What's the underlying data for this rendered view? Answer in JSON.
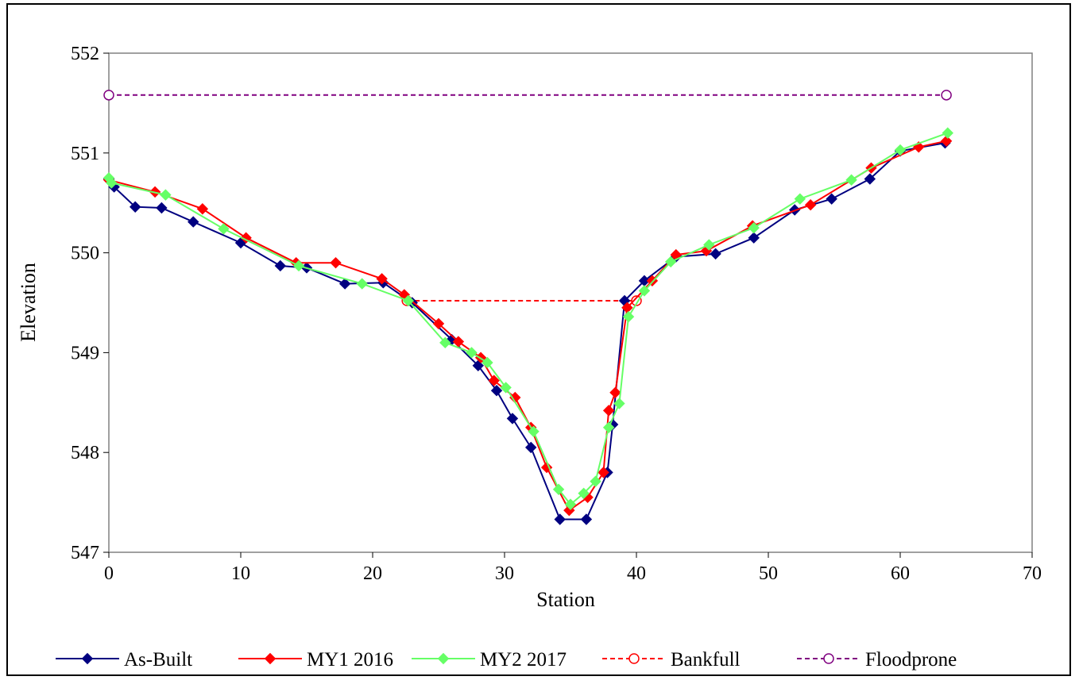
{
  "chart_data": {
    "type": "line",
    "title": "",
    "xlabel": "Station",
    "ylabel": "Elevation",
    "xlim": [
      0,
      70
    ],
    "ylim": [
      547,
      552
    ],
    "xticks": [
      0,
      10,
      20,
      30,
      40,
      50,
      60,
      70
    ],
    "yticks": [
      547,
      548,
      549,
      550,
      551,
      552
    ],
    "grid": false,
    "legend_position": "bottom",
    "series": [
      {
        "name": "As-Built",
        "color": "#000080",
        "line_style": "solid",
        "marker": "diamond",
        "points": [
          [
            0,
            550.74
          ],
          [
            0.4,
            550.66
          ],
          [
            2.0,
            550.46
          ],
          [
            4.0,
            550.45
          ],
          [
            6.4,
            550.31
          ],
          [
            10.0,
            550.1
          ],
          [
            13.0,
            549.87
          ],
          [
            15.0,
            549.85
          ],
          [
            17.9,
            549.69
          ],
          [
            20.8,
            549.7
          ],
          [
            23.0,
            549.5
          ],
          [
            26.0,
            549.13
          ],
          [
            28.0,
            548.87
          ],
          [
            29.4,
            548.62
          ],
          [
            30.6,
            548.34
          ],
          [
            32.0,
            548.05
          ],
          [
            34.2,
            547.33
          ],
          [
            36.2,
            547.33
          ],
          [
            37.8,
            547.8
          ],
          [
            38.2,
            548.28
          ],
          [
            39.1,
            549.52
          ],
          [
            40.6,
            549.72
          ],
          [
            43.0,
            549.96
          ],
          [
            46.0,
            549.99
          ],
          [
            48.9,
            550.15
          ],
          [
            52.0,
            550.43
          ],
          [
            54.8,
            550.54
          ],
          [
            57.7,
            550.74
          ],
          [
            60.0,
            551.02
          ],
          [
            63.4,
            551.1
          ]
        ]
      },
      {
        "name": "MY1 2016",
        "color": "#ff0000",
        "line_style": "solid",
        "marker": "diamond",
        "points": [
          [
            0,
            550.73
          ],
          [
            3.5,
            550.61
          ],
          [
            7.1,
            550.44
          ],
          [
            10.4,
            550.15
          ],
          [
            14.2,
            549.9
          ],
          [
            17.2,
            549.9
          ],
          [
            20.7,
            549.74
          ],
          [
            22.4,
            549.58
          ],
          [
            25.0,
            549.29
          ],
          [
            26.5,
            549.11
          ],
          [
            28.2,
            548.95
          ],
          [
            29.2,
            548.72
          ],
          [
            30.8,
            548.55
          ],
          [
            32.0,
            548.25
          ],
          [
            33.2,
            547.85
          ],
          [
            34.9,
            547.42
          ],
          [
            36.3,
            547.55
          ],
          [
            37.5,
            547.8
          ],
          [
            37.9,
            548.42
          ],
          [
            38.4,
            548.6
          ],
          [
            39.3,
            549.45
          ],
          [
            41.2,
            549.72
          ],
          [
            43.0,
            549.98
          ],
          [
            45.3,
            550.02
          ],
          [
            48.8,
            550.27
          ],
          [
            53.2,
            550.48
          ],
          [
            57.8,
            550.85
          ],
          [
            61.4,
            551.06
          ],
          [
            63.5,
            551.12
          ]
        ]
      },
      {
        "name": "MY2 2017",
        "color": "#66ff66",
        "line_style": "solid",
        "marker": "diamond",
        "points": [
          [
            0,
            550.75
          ],
          [
            0.2,
            550.7
          ],
          [
            4.3,
            550.58
          ],
          [
            8.7,
            550.24
          ],
          [
            14.4,
            549.87
          ],
          [
            19.2,
            549.69
          ],
          [
            22.7,
            549.52
          ],
          [
            25.5,
            549.1
          ],
          [
            27.5,
            549.0
          ],
          [
            28.7,
            548.9
          ],
          [
            30.1,
            548.65
          ],
          [
            32.2,
            548.21
          ],
          [
            34.1,
            547.63
          ],
          [
            35.0,
            547.48
          ],
          [
            36.0,
            547.59
          ],
          [
            36.9,
            547.71
          ],
          [
            37.9,
            548.25
          ],
          [
            38.7,
            548.49
          ],
          [
            39.4,
            549.36
          ],
          [
            40.6,
            549.62
          ],
          [
            42.6,
            549.91
          ],
          [
            45.5,
            550.08
          ],
          [
            48.9,
            550.25
          ],
          [
            52.4,
            550.54
          ],
          [
            56.3,
            550.73
          ],
          [
            60.0,
            551.03
          ],
          [
            63.6,
            551.2
          ]
        ]
      },
      {
        "name": "Bankfull",
        "color": "#ff0000",
        "line_style": "dashed",
        "marker": "open-circle",
        "points": [
          [
            22.6,
            549.52
          ],
          [
            40.0,
            549.52
          ]
        ]
      },
      {
        "name": "Floodprone",
        "color": "#800080",
        "line_style": "dashed",
        "marker": "open-circle",
        "points": [
          [
            0,
            551.58
          ],
          [
            63.5,
            551.58
          ]
        ]
      }
    ]
  }
}
